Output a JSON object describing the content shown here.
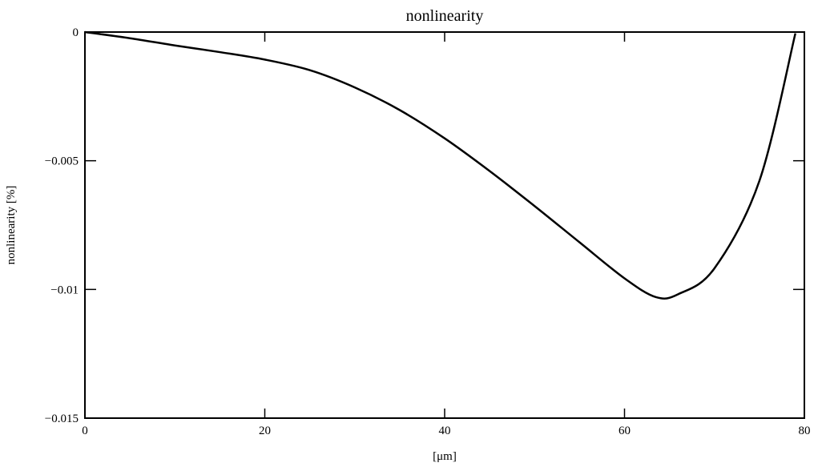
{
  "chart_data": {
    "type": "line",
    "title": "nonlinearity",
    "xlabel": "[μm]",
    "ylabel": "nonlinearity [%]",
    "xlim": [
      0,
      80
    ],
    "ylim": [
      -0.015,
      0
    ],
    "grid": false,
    "x_ticks": [
      0,
      20,
      40,
      60,
      80
    ],
    "x_tick_labels": [
      "0",
      "20",
      "40",
      "60",
      "80"
    ],
    "y_ticks": [
      0,
      -0.005,
      -0.01,
      -0.015
    ],
    "y_tick_labels": [
      "0",
      "−0.005",
      "−0.01",
      "−0.015"
    ],
    "series": [
      {
        "color": "#000000",
        "x": [
          0,
          5,
          10,
          15,
          20,
          25,
          30,
          35,
          40,
          45,
          50,
          55,
          60,
          63.5,
          66,
          70,
          75,
          79
        ],
        "y": [
          0,
          -0.00024,
          -0.00052,
          -0.00078,
          -0.00107,
          -0.00148,
          -0.00215,
          -0.00303,
          -0.00413,
          -0.0054,
          -0.00676,
          -0.00817,
          -0.00957,
          -0.0103,
          -0.01018,
          -0.00918,
          -0.00578,
          -5e-05
        ]
      }
    ]
  }
}
